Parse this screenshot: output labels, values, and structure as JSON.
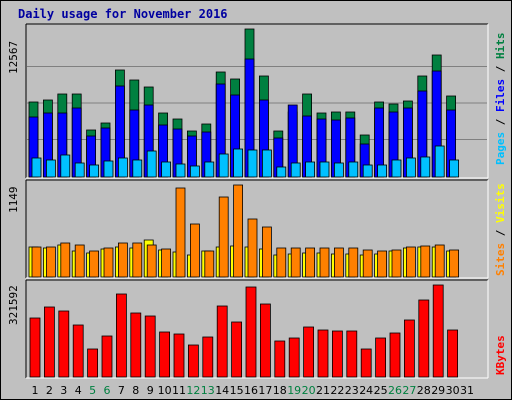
{
  "title": "Daily usage for November 2016",
  "colors": {
    "hits": "#008040",
    "files": "#0000ff",
    "pages": "#00c0ff",
    "visits": "#ffff00",
    "sites": "#ff8000",
    "kbytes": "#ff0000",
    "weekend_label": "#008040",
    "panel_bg": "#c0c0c0",
    "grid": "#808080"
  },
  "chart_data": [
    {
      "type": "bar",
      "ylabel_parts": [
        "Pages",
        "Files",
        "Hits"
      ],
      "ymax_label": "12567",
      "ylim": [
        0,
        12567
      ],
      "categories": [
        "1",
        "2",
        "3",
        "4",
        "5",
        "6",
        "7",
        "8",
        "9",
        "10",
        "11",
        "12",
        "13",
        "14",
        "15",
        "16",
        "17",
        "18",
        "19",
        "20",
        "21",
        "22",
        "23",
        "24",
        "25",
        "26",
        "27",
        "28",
        "29",
        "30",
        "31"
      ],
      "series": [
        {
          "name": "Hits",
          "values": [
            6380,
            6520,
            7050,
            7050,
            3970,
            4580,
            9100,
            8200,
            7600,
            5450,
            4900,
            3940,
            4500,
            8900,
            8300,
            12567,
            8600,
            3880,
            5550,
            7030,
            5400,
            5550,
            5550,
            3580,
            6380,
            6240,
            6420,
            8600,
            10350,
            6900,
            0
          ]
        },
        {
          "name": "Files",
          "values": [
            5100,
            5450,
            5450,
            5860,
            3520,
            4180,
            7730,
            5650,
            6100,
            4450,
            4050,
            3450,
            3860,
            7900,
            6980,
            10000,
            6500,
            3300,
            6100,
            5150,
            4910,
            4880,
            5050,
            2770,
            5880,
            5480,
            5880,
            7320,
            8980,
            5730,
            0
          ]
        },
        {
          "name": "Pages",
          "values": [
            1600,
            1450,
            1910,
            1180,
            1060,
            1390,
            1600,
            1450,
            2250,
            1300,
            1120,
            900,
            1280,
            1960,
            2380,
            2330,
            2310,
            820,
            1160,
            1280,
            1290,
            1180,
            1300,
            1060,
            1060,
            1410,
            1600,
            1680,
            2600,
            1450,
            0
          ]
        }
      ]
    },
    {
      "type": "bar",
      "ylabel_parts": [
        "Sites",
        "Visits"
      ],
      "ymax_label": "1149",
      "ylim": [
        0,
        1149
      ],
      "categories": [
        "1",
        "2",
        "3",
        "4",
        "5",
        "6",
        "7",
        "8",
        "9",
        "10",
        "11",
        "12",
        "13",
        "14",
        "15",
        "16",
        "17",
        "18",
        "19",
        "20",
        "21",
        "22",
        "23",
        "24",
        "25",
        "26",
        "27",
        "28",
        "29",
        "30",
        "31"
      ],
      "series": [
        {
          "name": "Visits",
          "values": [
            380,
            360,
            400,
            320,
            300,
            350,
            380,
            360,
            460,
            340,
            310,
            280,
            320,
            380,
            390,
            380,
            350,
            280,
            290,
            300,
            300,
            290,
            290,
            280,
            290,
            330,
            360,
            370,
            380,
            320,
            0
          ]
        },
        {
          "name": "Sites",
          "values": [
            380,
            380,
            430,
            400,
            330,
            360,
            430,
            430,
            400,
            350,
            1110,
            660,
            330,
            999,
            1149,
            720,
            625,
            360,
            360,
            365,
            360,
            360,
            360,
            340,
            330,
            340,
            380,
            390,
            400,
            340,
            0
          ]
        }
      ]
    },
    {
      "type": "bar",
      "ylabel_parts": [
        "KBytes"
      ],
      "ymax_label": "321592",
      "ylim": [
        0,
        321592
      ],
      "categories": [
        "1",
        "2",
        "3",
        "4",
        "5",
        "6",
        "7",
        "8",
        "9",
        "10",
        "11",
        "12",
        "13",
        "14",
        "15",
        "16",
        "17",
        "18",
        "19",
        "20",
        "21",
        "22",
        "23",
        "24",
        "25",
        "26",
        "27",
        "28",
        "29",
        "30",
        "31"
      ],
      "series": [
        {
          "name": "KBytes",
          "values": [
            206000,
            243000,
            232000,
            181000,
            98000,
            143000,
            289000,
            222000,
            214000,
            158000,
            152000,
            112000,
            140000,
            248000,
            191000,
            313000,
            254000,
            127000,
            136000,
            175000,
            163000,
            161000,
            161000,
            98000,
            136000,
            155000,
            198000,
            269000,
            321592,
            166000,
            0
          ]
        }
      ]
    }
  ],
  "weekend_days": [
    "5",
    "6",
    "12",
    "13",
    "19",
    "20",
    "26",
    "27"
  ]
}
